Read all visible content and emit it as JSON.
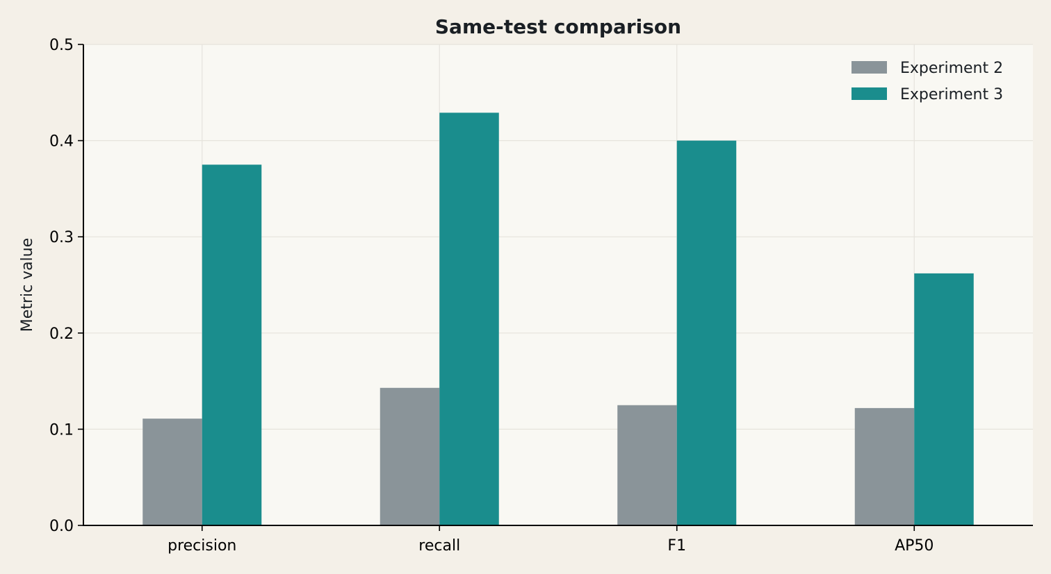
{
  "chart_data": {
    "type": "bar",
    "title": "Same-test comparison",
    "xlabel": "",
    "ylabel": "Metric value",
    "categories": [
      "precision",
      "recall",
      "F1",
      "AP50"
    ],
    "series": [
      {
        "name": "Experiment 2",
        "color": "#8a9499",
        "values": [
          0.111,
          0.143,
          0.125,
          0.122
        ]
      },
      {
        "name": "Experiment 3",
        "color": "#1a8d8d",
        "values": [
          0.375,
          0.429,
          0.4,
          0.262
        ]
      }
    ],
    "ylim": [
      0,
      0.5
    ],
    "yticks": [
      "0.0",
      "0.1",
      "0.2",
      "0.3",
      "0.4",
      "0.5"
    ],
    "grid": true,
    "legend_position": "top-right",
    "colors": {
      "page_background": "#f4f0e8",
      "plot_background": "#f9f8f3",
      "grid": "#e6e3dc",
      "axis": "#000000"
    }
  }
}
